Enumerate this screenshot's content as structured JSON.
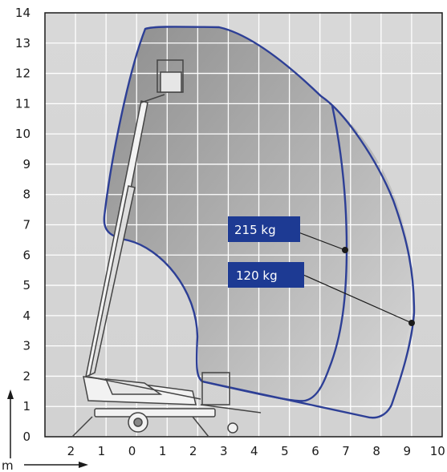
{
  "diagram": {
    "y_ticks": [
      "0",
      "1",
      "2",
      "3",
      "4",
      "5",
      "6",
      "7",
      "8",
      "9",
      "10",
      "11",
      "12",
      "13",
      "14"
    ],
    "x_ticks": [
      "2",
      "1",
      "0",
      "1",
      "2",
      "3",
      "4",
      "5",
      "6",
      "7",
      "8",
      "9",
      "10"
    ],
    "unit_label": "m",
    "load_labels": [
      {
        "text": "215 kg",
        "value_kg": 215
      },
      {
        "text": "120 kg",
        "value_kg": 120
      }
    ],
    "colors": {
      "grid_line": "#ffffff",
      "envelope": "#2d3f96",
      "label_box": "#1d3a93",
      "axis": "#1b1b1b",
      "machine": "#444444"
    }
  }
}
